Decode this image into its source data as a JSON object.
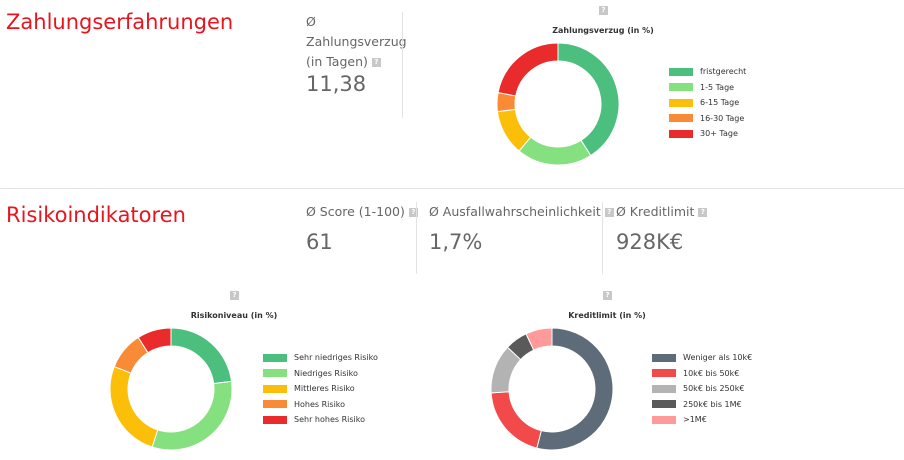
{
  "payment": {
    "section_title": "Zahlungserfahrungen",
    "kpi": {
      "label_lines": [
        "Ø",
        "Zahlungsverzug",
        "(in Tagen)"
      ],
      "value": "11,38"
    },
    "help_icon": "?",
    "chart": {
      "title": "Zahlungsverzug (in %)",
      "legend": [
        {
          "label": "fristgerecht",
          "color": "#4cbf7e"
        },
        {
          "label": "1-5 Tage",
          "color": "#85e07f"
        },
        {
          "label": "6-15 Tage",
          "color": "#fbbf0a"
        },
        {
          "label": "16-30 Tage",
          "color": "#f98a36"
        },
        {
          "label": "30+ Tage",
          "color": "#e92b2b"
        }
      ]
    }
  },
  "risk": {
    "section_title": "Risikoindikatoren",
    "help_icon": "?",
    "kpis": [
      {
        "label": "Ø Score (1-100)",
        "value": "61"
      },
      {
        "label": "Ø Ausfallwahrscheinlichkeit",
        "value": "1,7%"
      },
      {
        "label": "Ø Kreditlimit",
        "value": "928K€"
      }
    ],
    "risk_chart": {
      "title": "Risikoniveau (in %)",
      "legend": [
        {
          "label": "Sehr niedriges Risiko",
          "color": "#4cbf7e"
        },
        {
          "label": "Niedriges Risiko",
          "color": "#85e07f"
        },
        {
          "label": "Mittleres Risiko",
          "color": "#fbbf0a"
        },
        {
          "label": "Hohes Risiko",
          "color": "#f98a36"
        },
        {
          "label": "Sehr hohes Risiko",
          "color": "#e92b2b"
        }
      ]
    },
    "limit_chart": {
      "title": "Kreditlimit (in %)",
      "legend": [
        {
          "label": "Weniger als 10k€",
          "color": "#5e6b78"
        },
        {
          "label": "10k€ bis 50k€",
          "color": "#f24a4a"
        },
        {
          "label": "50k€ bis 250k€",
          "color": "#b3b3b3"
        },
        {
          "label": "250k€ bis 1M€",
          "color": "#5a5a5a"
        },
        {
          "label": ">1M€",
          "color": "#ff9a9a"
        }
      ]
    }
  },
  "chart_data": [
    {
      "type": "pie",
      "title": "Zahlungsverzug (in %)",
      "categories": [
        "fristgerecht",
        "1-5 Tage",
        "6-15 Tage",
        "16-30 Tage",
        "30+ Tage"
      ],
      "values": [
        41,
        20,
        12,
        5,
        22
      ],
      "colors": [
        "#4cbf7e",
        "#85e07f",
        "#fbbf0a",
        "#f98a36",
        "#e92b2b"
      ],
      "legend": "right"
    },
    {
      "type": "pie",
      "title": "Risikoniveau (in %)",
      "categories": [
        "Sehr niedriges Risiko",
        "Niedriges Risiko",
        "Mittleres Risiko",
        "Hohes Risiko",
        "Sehr hohes Risiko"
      ],
      "values": [
        23,
        32,
        26,
        10,
        9
      ],
      "colors": [
        "#4cbf7e",
        "#85e07f",
        "#fbbf0a",
        "#f98a36",
        "#e92b2b"
      ],
      "legend": "right"
    },
    {
      "type": "pie",
      "title": "Kreditlimit (in %)",
      "categories": [
        "Weniger als 10k€",
        "10k€ bis 50k€",
        "50k€ bis 250k€",
        "250k€ bis 1M€",
        ">1M€"
      ],
      "values": [
        54,
        20,
        13,
        6,
        7
      ],
      "colors": [
        "#5e6b78",
        "#f24a4a",
        "#b3b3b3",
        "#5a5a5a",
        "#ff9a9a"
      ],
      "legend": "right"
    }
  ]
}
